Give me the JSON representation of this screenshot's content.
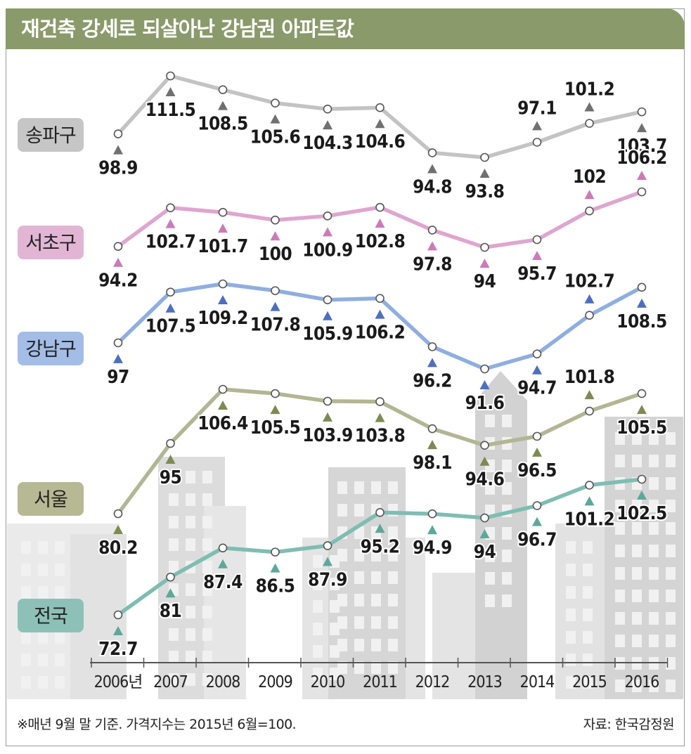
{
  "title": "재건축 강세로 되살아난 강남권 아파트값",
  "footnote": "※매년 9월 말 기준. 가격지수는 2015년 6월=100.",
  "source": "자료: 한국감정원",
  "chart_data": {
    "type": "line",
    "title": "재건축 강세로 되살아난 강남권 아파트값",
    "categories": [
      "2006년",
      "2007",
      "2008",
      "2009",
      "2010",
      "2011",
      "2012",
      "2013",
      "2014",
      "2015",
      "2016"
    ],
    "series": [
      {
        "name": "송파구",
        "color": "#c3c3c3",
        "marker": "#707070",
        "labelbg": "#c6c6c6",
        "values": [
          98.9,
          111.5,
          108.5,
          105.6,
          104.3,
          104.6,
          94.8,
          93.8,
          97.1,
          101.2,
          103.7
        ],
        "labels": [
          "98.9",
          "111.5",
          "108.5",
          "105.6",
          "104.3",
          "104.6",
          "94.8",
          "93.8",
          "97.1",
          "101.2",
          "103.7"
        ]
      },
      {
        "name": "서초구",
        "color": "#dea6cf",
        "marker": "#cc7ab8",
        "labelbg": "#e2b5d5",
        "values": [
          94.2,
          102.7,
          101.7,
          100,
          100.9,
          102.8,
          97.8,
          94,
          95.7,
          102,
          106.2
        ],
        "labels": [
          "94.2",
          "102.7",
          "101.7",
          "100",
          "100.9",
          "102.8",
          "97.8",
          "94",
          "95.7",
          "102",
          "106.2"
        ]
      },
      {
        "name": "강남구",
        "color": "#8faee0",
        "marker": "#4d6fc0",
        "labelbg": "#a3bde6",
        "values": [
          97,
          107.5,
          109.2,
          107.8,
          105.9,
          106.2,
          96.2,
          91.6,
          94.7,
          102.7,
          108.5
        ],
        "labels": [
          "97",
          "107.5",
          "109.2",
          "107.8",
          "105.9",
          "106.2",
          "96.2",
          "91.6",
          "94.7",
          "102.7",
          "108.5"
        ]
      },
      {
        "name": "서울",
        "color": "#b2b693",
        "marker": "#7e8a52",
        "labelbg": "#b6b994",
        "values": [
          80.2,
          95,
          106.4,
          105.5,
          103.9,
          103.8,
          98.1,
          94.6,
          96.5,
          101.8,
          105.5
        ],
        "labels": [
          "80.2",
          "95",
          "106.4",
          "105.5",
          "103.9",
          "103.8",
          "98.1",
          "94.6",
          "96.5",
          "101.8",
          "105.5"
        ]
      },
      {
        "name": "전국",
        "color": "#7fbdb2",
        "marker": "#5da89b",
        "labelbg": "#8dc1b7",
        "values": [
          72.7,
          81,
          87.4,
          86.5,
          87.9,
          95.2,
          94.9,
          94,
          96.7,
          101.2,
          102.5
        ],
        "labels": [
          "72.7",
          "81",
          "87.4",
          "86.5",
          "87.9",
          "95.2",
          "94.9",
          "94",
          "96.7",
          "101.2",
          "102.5"
        ]
      }
    ]
  }
}
